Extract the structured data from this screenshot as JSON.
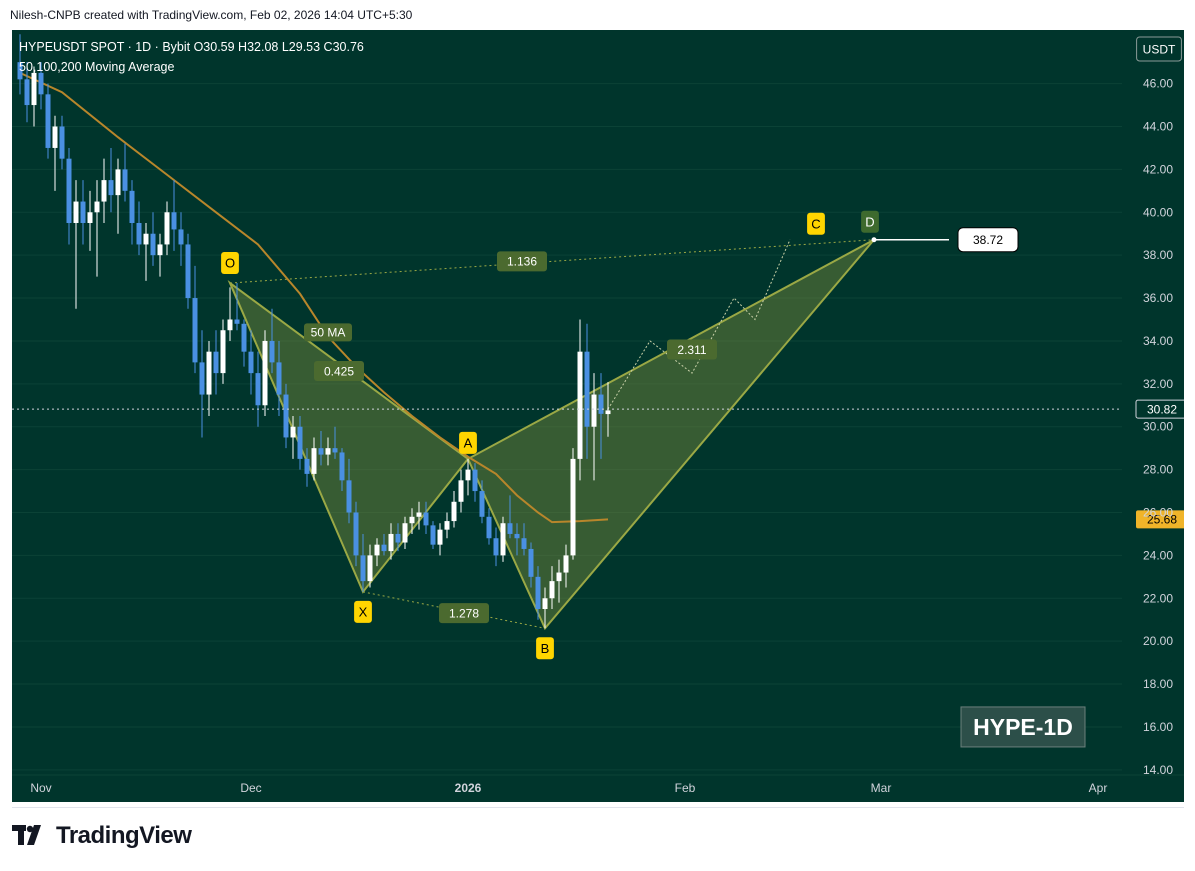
{
  "header": {
    "caption": "Nilesh-CNPB created with TradingView.com, Feb 02, 2026 14:04 UTC+5:30"
  },
  "legend": {
    "symbol_line": "HYPEUSDT SPOT · 1D · Bybit  O30.59  H32.08  L29.53  C30.76",
    "indicator_line": "50,100,200 Moving Average"
  },
  "footer": {
    "brand": "TradingView"
  },
  "colors": {
    "background": "#00352c",
    "candle_up": "#ffffff",
    "candle_down": "#4a90e2",
    "ma": "#b8862b",
    "pattern_fill": "#7a8c3c",
    "pattern_edge": "#9aa845",
    "point_label_bg": "#ffd500",
    "ratio_label_bg": "#4b6a2f"
  },
  "chart_data": {
    "type": "candlestick",
    "symbol": "HYPEUSDT SPOT",
    "interval": "1D",
    "exchange": "Bybit",
    "ohlc": {
      "open": 30.59,
      "high": 32.08,
      "low": 29.53,
      "close": 30.76
    },
    "currency_badge": "USDT",
    "ylim": [
      12.5,
      48.5
    ],
    "y_ticks": [
      14,
      16,
      18,
      20,
      22,
      24,
      26,
      28,
      30,
      32,
      34,
      36,
      38,
      40,
      42,
      44,
      46
    ],
    "y_tick_labels": [
      "14.00",
      "16.00",
      "18.00",
      "20.00",
      "22.00",
      "24.00",
      "26.00",
      "28.00",
      "30.00",
      "32.00",
      "34.00",
      "36.00",
      "38.00",
      "40.00",
      "42.00",
      "44.00",
      "46.00"
    ],
    "x_labels": [
      {
        "label": "Nov",
        "date": "2025-11-01"
      },
      {
        "label": "Dec",
        "date": "2025-12-01"
      },
      {
        "label": "2026",
        "date": "2026-01-01",
        "bold": true
      },
      {
        "label": "Feb",
        "date": "2026-02-01"
      },
      {
        "label": "Mar",
        "date": "2026-03-01"
      },
      {
        "label": "Apr",
        "date": "2026-04-01"
      }
    ],
    "start_date": "2025-10-29",
    "last_price": {
      "value": 30.82,
      "label": "30.82"
    },
    "ma50_price": {
      "value": 25.68,
      "label": "25.68"
    },
    "target_price": {
      "value": 38.72,
      "label": "38.72"
    },
    "candles": [
      [
        47.0,
        48.3,
        45.5,
        46.2
      ],
      [
        46.2,
        47.0,
        44.2,
        45.0
      ],
      [
        45.0,
        46.8,
        44.0,
        46.5
      ],
      [
        46.5,
        47.0,
        44.8,
        45.5
      ],
      [
        45.5,
        46.0,
        42.5,
        43.0
      ],
      [
        43.0,
        44.5,
        41.0,
        44.0
      ],
      [
        44.0,
        44.5,
        42.0,
        42.5
      ],
      [
        42.5,
        43.0,
        38.5,
        39.5
      ],
      [
        39.5,
        41.5,
        35.5,
        40.5
      ],
      [
        40.5,
        41.5,
        38.5,
        39.5
      ],
      [
        39.5,
        41.0,
        38.2,
        40.0
      ],
      [
        40.0,
        41.5,
        37.0,
        40.5
      ],
      [
        40.5,
        42.5,
        39.5,
        41.5
      ],
      [
        41.5,
        43.0,
        40.0,
        40.8
      ],
      [
        40.8,
        42.5,
        39.0,
        42.0
      ],
      [
        42.0,
        43.2,
        40.5,
        41.0
      ],
      [
        41.0,
        41.5,
        38.5,
        39.5
      ],
      [
        39.5,
        40.5,
        38.0,
        38.5
      ],
      [
        38.5,
        39.5,
        36.8,
        39.0
      ],
      [
        39.0,
        40.0,
        37.5,
        38.0
      ],
      [
        38.0,
        39.0,
        37.0,
        38.5
      ],
      [
        38.5,
        40.5,
        38.0,
        40.0
      ],
      [
        40.0,
        41.5,
        38.2,
        39.2
      ],
      [
        39.2,
        40.0,
        37.5,
        38.5
      ],
      [
        38.5,
        39.0,
        35.5,
        36.0
      ],
      [
        36.0,
        37.5,
        32.5,
        33.0
      ],
      [
        33.0,
        34.5,
        29.5,
        31.5
      ],
      [
        31.5,
        34.0,
        30.5,
        33.5
      ],
      [
        33.5,
        34.5,
        31.5,
        32.5
      ],
      [
        32.5,
        35.0,
        32.0,
        34.5
      ],
      [
        34.5,
        36.5,
        34.0,
        35.0
      ],
      [
        35.0,
        36.7,
        34.5,
        34.8
      ],
      [
        34.8,
        35.0,
        32.8,
        33.5
      ],
      [
        33.5,
        34.5,
        31.5,
        32.5
      ],
      [
        32.5,
        33.5,
        30.0,
        31.0
      ],
      [
        31.0,
        34.5,
        30.5,
        34.0
      ],
      [
        34.0,
        35.5,
        32.5,
        33.0
      ],
      [
        33.0,
        34.0,
        30.5,
        31.5
      ],
      [
        31.5,
        32.0,
        29.0,
        29.5
      ],
      [
        29.5,
        30.5,
        28.5,
        30.0
      ],
      [
        30.0,
        30.5,
        28.0,
        28.5
      ],
      [
        28.5,
        29.0,
        27.2,
        27.8
      ],
      [
        27.8,
        29.5,
        27.5,
        29.0
      ],
      [
        29.0,
        29.8,
        28.2,
        28.7
      ],
      [
        28.7,
        29.5,
        28.2,
        29.0
      ],
      [
        29.0,
        30.0,
        28.5,
        28.8
      ],
      [
        28.8,
        29.0,
        27.0,
        27.5
      ],
      [
        27.5,
        28.5,
        25.5,
        26.0
      ],
      [
        26.0,
        26.5,
        23.5,
        24.0
      ],
      [
        24.0,
        25.0,
        22.3,
        22.8
      ],
      [
        22.8,
        24.5,
        22.5,
        24.0
      ],
      [
        24.0,
        24.8,
        23.5,
        24.5
      ],
      [
        24.5,
        25.0,
        24.0,
        24.2
      ],
      [
        24.2,
        25.5,
        23.8,
        25.0
      ],
      [
        25.0,
        25.5,
        24.2,
        24.6
      ],
      [
        24.6,
        25.8,
        24.3,
        25.5
      ],
      [
        25.5,
        26.2,
        25.0,
        25.8
      ],
      [
        25.8,
        26.5,
        25.2,
        26.0
      ],
      [
        26.0,
        26.5,
        25.0,
        25.4
      ],
      [
        25.4,
        25.6,
        24.3,
        24.5
      ],
      [
        24.5,
        25.5,
        24.0,
        25.2
      ],
      [
        25.2,
        26.0,
        24.8,
        25.6
      ],
      [
        25.6,
        27.0,
        25.3,
        26.5
      ],
      [
        26.5,
        28.0,
        26.0,
        27.5
      ],
      [
        27.5,
        28.5,
        26.8,
        28.0
      ],
      [
        28.0,
        28.3,
        26.5,
        27.0
      ],
      [
        27.0,
        27.5,
        25.5,
        25.8
      ],
      [
        25.8,
        26.2,
        24.5,
        24.8
      ],
      [
        24.8,
        25.3,
        23.5,
        24.0
      ],
      [
        24.0,
        25.8,
        23.7,
        25.5
      ],
      [
        25.5,
        26.8,
        24.8,
        25.0
      ],
      [
        25.0,
        25.5,
        24.0,
        24.8
      ],
      [
        24.8,
        25.5,
        24.0,
        24.3
      ],
      [
        24.3,
        24.6,
        22.5,
        23.0
      ],
      [
        23.0,
        23.5,
        21.0,
        21.5
      ],
      [
        21.5,
        22.5,
        20.6,
        22.0
      ],
      [
        22.0,
        23.5,
        21.5,
        22.8
      ],
      [
        22.8,
        23.8,
        21.8,
        23.2
      ],
      [
        23.2,
        24.5,
        22.5,
        24.0
      ],
      [
        24.0,
        29.0,
        23.8,
        28.5
      ],
      [
        28.5,
        35.0,
        27.5,
        33.5
      ],
      [
        33.5,
        34.8,
        28.5,
        30.0
      ],
      [
        30.0,
        32.5,
        27.5,
        31.5
      ],
      [
        31.5,
        32.5,
        28.5,
        30.6
      ],
      [
        30.59,
        32.08,
        29.53,
        30.76
      ]
    ],
    "ma50": [
      [
        0,
        46.5
      ],
      [
        6,
        45.6
      ],
      [
        14,
        43.5
      ],
      [
        20,
        42.0
      ],
      [
        28,
        40.0
      ],
      [
        34,
        38.5
      ],
      [
        40,
        36.2
      ],
      [
        44,
        34.2
      ],
      [
        48,
        32.8
      ],
      [
        52,
        31.6
      ],
      [
        56,
        30.5
      ],
      [
        60,
        29.5
      ],
      [
        64,
        28.6
      ],
      [
        68,
        27.8
      ],
      [
        71,
        26.8
      ],
      [
        74,
        26.0
      ],
      [
        76,
        25.55
      ],
      [
        80,
        25.6
      ],
      [
        84,
        25.68
      ]
    ],
    "ma50_label": "50 MA",
    "harmonic_pattern": {
      "points": [
        {
          "label": "O",
          "date_index": 30,
          "price": 36.7
        },
        {
          "label": "X",
          "date_index": 49,
          "price": 22.3
        },
        {
          "label": "A",
          "date_index": 64,
          "price": 28.5
        },
        {
          "label": "B",
          "date_index": 75,
          "price": 20.6
        },
        {
          "label": "C",
          "date_index": 118,
          "price": 38.72
        },
        {
          "label": "D",
          "date_index": 122,
          "price": 38.72
        }
      ],
      "ratios": [
        {
          "label": "1.136"
        },
        {
          "label": "0.425"
        },
        {
          "label": "1.278"
        },
        {
          "label": "2.311"
        }
      ],
      "projection_path": [
        [
          84,
          30.82
        ],
        [
          90,
          34.0
        ],
        [
          96,
          32.5
        ],
        [
          102,
          36.0
        ],
        [
          105,
          35.0
        ],
        [
          110,
          38.72
        ]
      ]
    },
    "watermark": "HYPE-1D"
  }
}
